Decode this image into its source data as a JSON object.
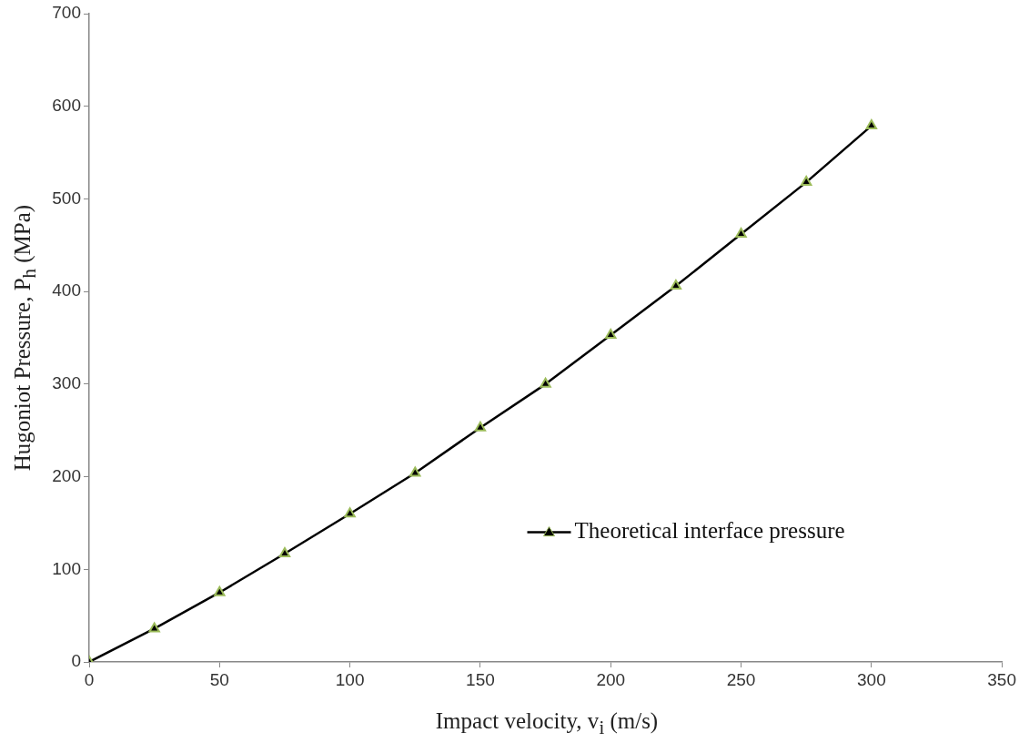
{
  "chart_data": {
    "type": "line",
    "xlabel": "Impact velocity, v$_{i}$ (m/s)",
    "ylabel": "Hugoniot Pressure, P$_{h}$ (MPa)",
    "x": [
      0,
      25,
      50,
      75,
      100,
      125,
      150,
      175,
      200,
      225,
      250,
      275,
      300
    ],
    "series": [
      {
        "name": "Theoretical interface pressure",
        "color": "#000000",
        "values": [
          0,
          36,
          75,
          117,
          160,
          204,
          253,
          300,
          353,
          406,
          462,
          518,
          579
        ]
      }
    ],
    "xlim": [
      0,
      350
    ],
    "xticks": [
      0,
      50,
      100,
      150,
      200,
      250,
      300,
      350
    ],
    "ylim": [
      0,
      700
    ],
    "yticks": [
      0,
      100,
      200,
      300,
      400,
      500,
      600,
      700
    ],
    "grid": false,
    "legend": "right",
    "marker": "triangle",
    "line_style": "solid"
  }
}
